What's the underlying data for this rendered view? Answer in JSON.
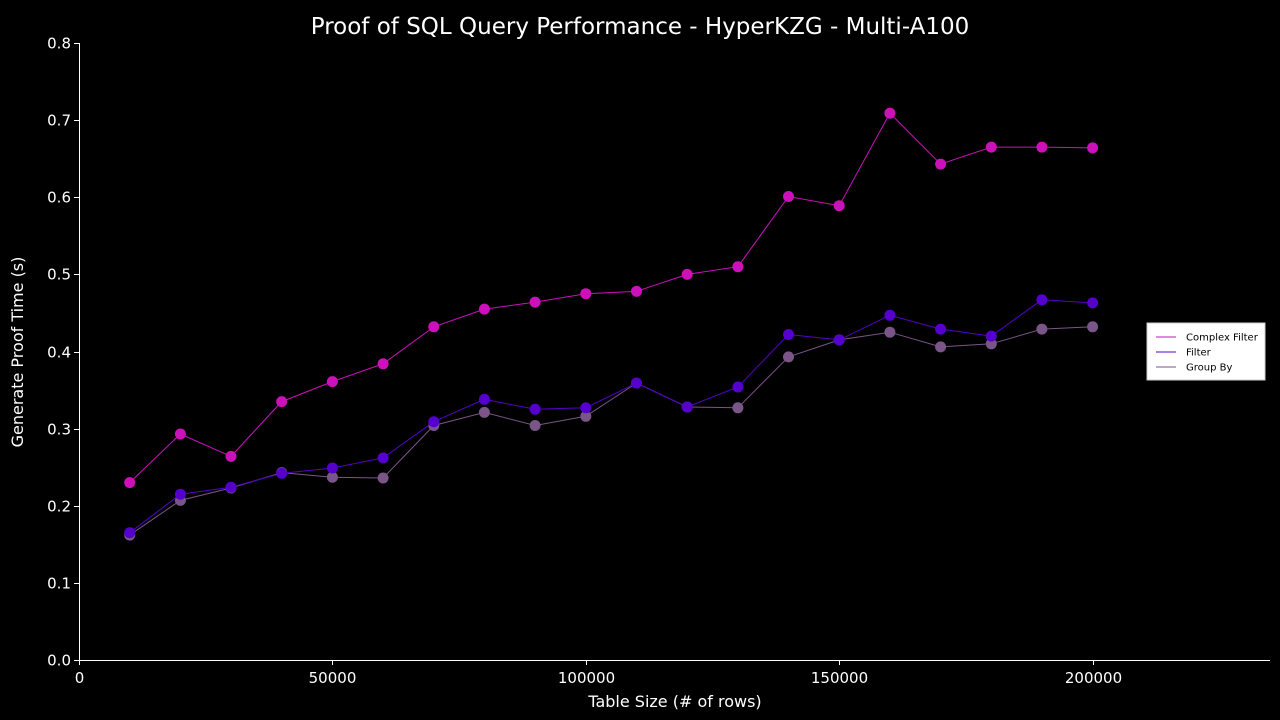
{
  "chart_data": {
    "type": "line",
    "title": "Proof of SQL Query Performance - HyperKZG - Multi-A100",
    "xlabel": "Table Size (# of rows)",
    "ylabel": "Generate Proof Time (s)",
    "xlim": [
      0,
      235000
    ],
    "ylim": [
      0,
      0.8
    ],
    "xticks": [
      0,
      50000,
      100000,
      150000,
      200000
    ],
    "xtick_labels": [
      "0",
      "50000",
      "100000",
      "150000",
      "200000"
    ],
    "yticks": [
      0.0,
      0.1,
      0.2,
      0.3,
      0.4,
      0.5,
      0.6,
      0.7,
      0.8
    ],
    "ytick_labels": [
      "0.0",
      "0.1",
      "0.2",
      "0.3",
      "0.4",
      "0.5",
      "0.6",
      "0.7",
      "0.8"
    ],
    "grid": false,
    "legend_position": "right",
    "x": [
      10000,
      20000,
      30000,
      40000,
      50000,
      60000,
      70000,
      80000,
      90000,
      100000,
      110000,
      120000,
      130000,
      140000,
      150000,
      160000,
      170000,
      180000,
      190000,
      200000
    ],
    "series": [
      {
        "name": "Complex Filter",
        "color": "#cc11bb",
        "values": [
          0.23,
          0.293,
          0.264,
          0.335,
          0.361,
          0.384,
          0.432,
          0.455,
          0.464,
          0.475,
          0.478,
          0.5,
          0.51,
          0.601,
          0.589,
          0.709,
          0.643,
          0.665,
          0.665,
          0.664
        ]
      },
      {
        "name": "Filter",
        "color": "#5500cc",
        "values": [
          0.165,
          0.215,
          0.224,
          0.242,
          0.249,
          0.262,
          0.309,
          0.338,
          0.325,
          0.327,
          0.359,
          0.328,
          0.354,
          0.422,
          0.415,
          0.447,
          0.429,
          0.42,
          0.467,
          0.463
        ]
      },
      {
        "name": "Group By",
        "color": "#7a5588",
        "values": [
          0.162,
          0.207,
          0.223,
          0.243,
          0.237,
          0.236,
          0.304,
          0.321,
          0.304,
          0.316,
          0.359,
          0.328,
          0.327,
          0.393,
          0.415,
          0.425,
          0.406,
          0.41,
          0.429,
          0.432
        ]
      }
    ]
  }
}
